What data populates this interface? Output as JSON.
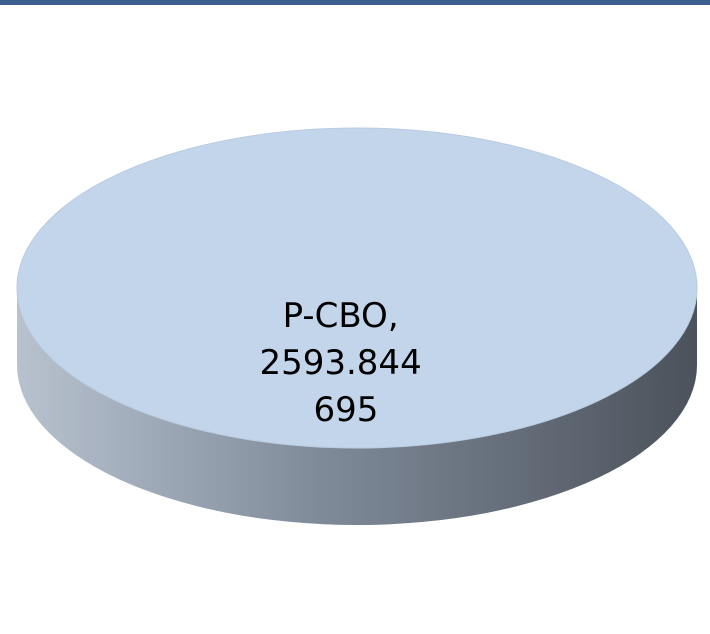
{
  "colors": {
    "top_rule": "#3a5f8f",
    "slice_top": "#c3d5ea",
    "slice_top_stroke": "#b9cbe1",
    "side_light": "#b8c2cf",
    "side_mid": "#7f8a99",
    "side_dark": "#4b525b"
  },
  "chart_data": {
    "type": "pie",
    "style": "3d",
    "categories": [
      "P-CBO"
    ],
    "values": [
      2593.844695
    ],
    "data_labels": [
      {
        "lines": [
          "P-CBO,",
          "2593.844",
          "695"
        ]
      }
    ],
    "title": "",
    "legend": "none"
  }
}
